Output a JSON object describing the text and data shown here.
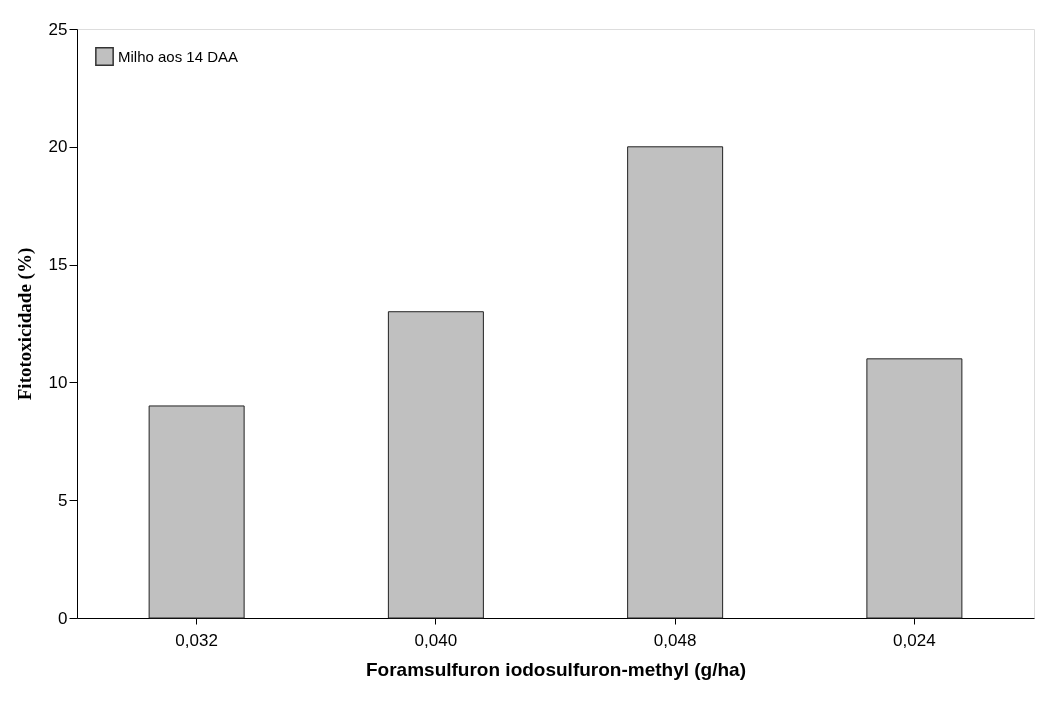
{
  "chart_data": {
    "type": "bar",
    "xlabel": "Foramsulfuron iodosulfuron-methyl (g/ha)",
    "ylabel": "Fitotoxicidade (%)",
    "categories": [
      "0,032",
      "0,040",
      "0,048",
      "0,024"
    ],
    "series": [
      {
        "name": "Milho aos 14 DAA",
        "color": "#c0c0c0",
        "values": [
          9,
          13,
          20,
          11
        ]
      }
    ],
    "ylim": [
      0,
      25
    ],
    "yticks": [
      0,
      5,
      10,
      15,
      20,
      25
    ],
    "grid": false,
    "legend": "top left"
  }
}
